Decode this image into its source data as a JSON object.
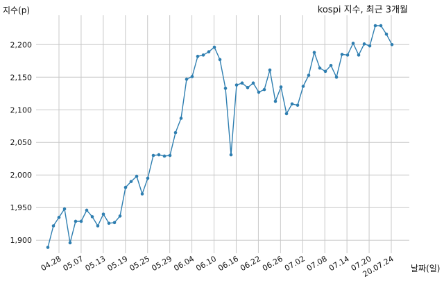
{
  "chart_data": {
    "type": "line",
    "title": "kospi 지수, 최근 3개월",
    "ylabel": "지수(p)",
    "xlabel": "날짜(일)",
    "ylim": [
      1880,
      2245
    ],
    "yticks": [
      1900,
      1950,
      2000,
      2050,
      2100,
      2150,
      2200
    ],
    "ytick_labels": [
      "1,900",
      "1,950",
      "2,000",
      "2,050",
      "2,100",
      "2,150",
      "2,200"
    ],
    "xtick_labels": [
      "04.28",
      "05.07",
      "05.13",
      "05.19",
      "05.25",
      "05.29",
      "06.04",
      "06.10",
      "06.16",
      "06.22",
      "06.26",
      "07.02",
      "07.08",
      "07.14",
      "07.20",
      "20.07.24"
    ],
    "grid": true,
    "color": "#2e7eb0",
    "series": [
      {
        "values": [
          1889,
          1922,
          1935,
          1948,
          1896,
          1929,
          1929,
          1946,
          1936,
          1922,
          1940,
          1926,
          1927,
          1937,
          1981,
          1990,
          1998,
          1971,
          1995,
          2030,
          2031,
          2029,
          2030,
          2065,
          2087,
          2147,
          2151,
          2182,
          2184,
          2189,
          2196,
          2177,
          2133,
          2031,
          2138,
          2141,
          2134,
          2141,
          2127,
          2131,
          2161,
          2113,
          2135,
          2094,
          2109,
          2107,
          2136,
          2153,
          2188,
          2164,
          2159,
          2168,
          2150,
          2185,
          2184,
          2202,
          2184,
          2201,
          2198,
          2229,
          2229,
          2216,
          2200
        ]
      }
    ]
  }
}
